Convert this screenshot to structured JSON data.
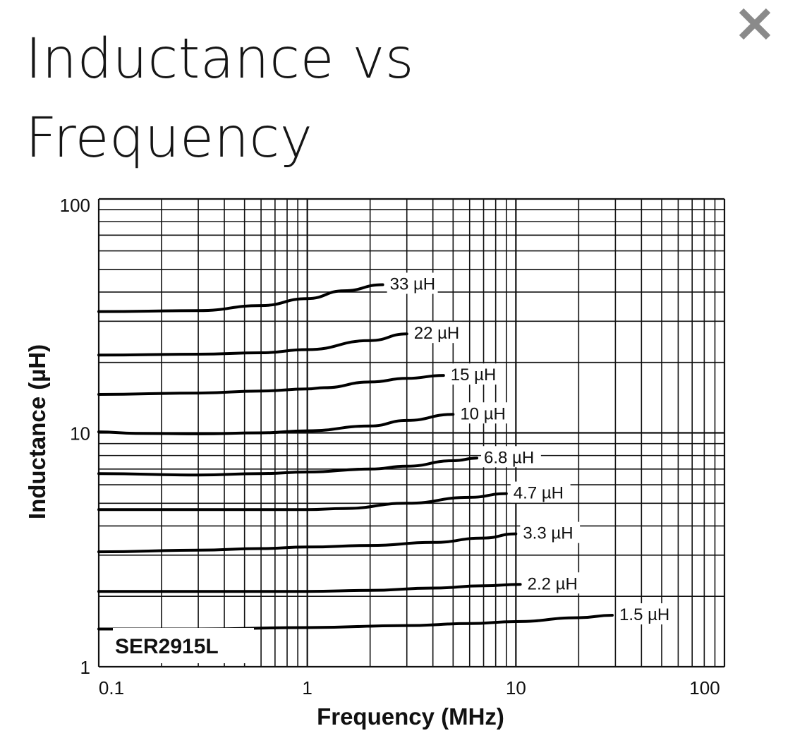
{
  "modal": {
    "title_line1": "Inductance vs",
    "title_line2": "Frequency",
    "close_icon": "close-x-icon"
  },
  "colors": {
    "background": "#ffffff",
    "title": "#151515",
    "close_icon": "#8a8a8a",
    "grid": "#111111",
    "curve": "#000000"
  },
  "chart_data": {
    "type": "line",
    "title": "Inductance vs Frequency",
    "xlabel": "Frequency (MHz)",
    "ylabel": "Inductance (µH)",
    "xscale": "log",
    "yscale": "log",
    "xlim": [
      0.1,
      100
    ],
    "ylim": [
      1,
      100
    ],
    "x_ticks": [
      {
        "value": 0.1,
        "label": "0.1"
      },
      {
        "value": 1,
        "label": "1"
      },
      {
        "value": 10,
        "label": "10"
      },
      {
        "value": 100,
        "label": "100"
      }
    ],
    "y_ticks": [
      {
        "value": 1,
        "label": "1"
      },
      {
        "value": 10,
        "label": "10"
      },
      {
        "value": 100,
        "label": "100"
      }
    ],
    "grid": true,
    "annotation": "SER2915L",
    "series": [
      {
        "name": "33 µH",
        "label": "33 µH",
        "points": [
          [
            0.1,
            33
          ],
          [
            0.3,
            33.3
          ],
          [
            0.6,
            35
          ],
          [
            1,
            37.5
          ],
          [
            1.5,
            40.5
          ],
          [
            2.3,
            43
          ]
        ]
      },
      {
        "name": "22 µH",
        "label": "22 µH",
        "points": [
          [
            0.1,
            21.5
          ],
          [
            0.3,
            21.7
          ],
          [
            0.6,
            22
          ],
          [
            1,
            22.7
          ],
          [
            2,
            24.8
          ],
          [
            3,
            26.5
          ]
        ]
      },
      {
        "name": "15 µH",
        "label": "15 µH",
        "points": [
          [
            0.1,
            14.6
          ],
          [
            0.3,
            14.8
          ],
          [
            0.6,
            15.1
          ],
          [
            1,
            15.4
          ],
          [
            1.2,
            15.6
          ],
          [
            2,
            16.5
          ],
          [
            3,
            17.1
          ],
          [
            4.5,
            17.6
          ]
        ]
      },
      {
        "name": "10 µH",
        "label": "10 µH",
        "points": [
          [
            0.1,
            10.1
          ],
          [
            0.15,
            9.95
          ],
          [
            0.3,
            9.9
          ],
          [
            0.6,
            10
          ],
          [
            1,
            10.2
          ],
          [
            2,
            10.7
          ],
          [
            3,
            11.3
          ],
          [
            5,
            12
          ]
        ]
      },
      {
        "name": "6.8 µH",
        "label": "6.8 µH",
        "points": [
          [
            0.1,
            6.7
          ],
          [
            0.3,
            6.6
          ],
          [
            0.6,
            6.7
          ],
          [
            1,
            6.8
          ],
          [
            2,
            7
          ],
          [
            3,
            7.2
          ],
          [
            5,
            7.6
          ],
          [
            6.5,
            7.8
          ]
        ]
      },
      {
        "name": "4.7 µH",
        "label": "4.7 µH",
        "points": [
          [
            0.1,
            4.7
          ],
          [
            0.3,
            4.7
          ],
          [
            0.6,
            4.7
          ],
          [
            1,
            4.7
          ],
          [
            1.5,
            4.75
          ],
          [
            3,
            5
          ],
          [
            6,
            5.3
          ],
          [
            9,
            5.5
          ]
        ]
      },
      {
        "name": "3.3 µH",
        "label": "3.3 µH",
        "points": [
          [
            0.1,
            3.1
          ],
          [
            0.3,
            3.15
          ],
          [
            0.6,
            3.2
          ],
          [
            1,
            3.25
          ],
          [
            2,
            3.3
          ],
          [
            4,
            3.4
          ],
          [
            7,
            3.55
          ],
          [
            10,
            3.7
          ]
        ]
      },
      {
        "name": "2.2 µH",
        "label": "2.2 µH",
        "points": [
          [
            0.1,
            2.1
          ],
          [
            0.3,
            2.1
          ],
          [
            0.6,
            2.1
          ],
          [
            1,
            2.1
          ],
          [
            2,
            2.12
          ],
          [
            4,
            2.17
          ],
          [
            7,
            2.22
          ],
          [
            10.5,
            2.25
          ]
        ]
      },
      {
        "name": "1.5 µH",
        "label": "1.5 µH",
        "points": [
          [
            0.1,
            1.45
          ],
          [
            0.3,
            1.45
          ],
          [
            1,
            1.47
          ],
          [
            3,
            1.5
          ],
          [
            6,
            1.53
          ],
          [
            10,
            1.56
          ],
          [
            20,
            1.62
          ],
          [
            29,
            1.66
          ]
        ]
      }
    ]
  }
}
